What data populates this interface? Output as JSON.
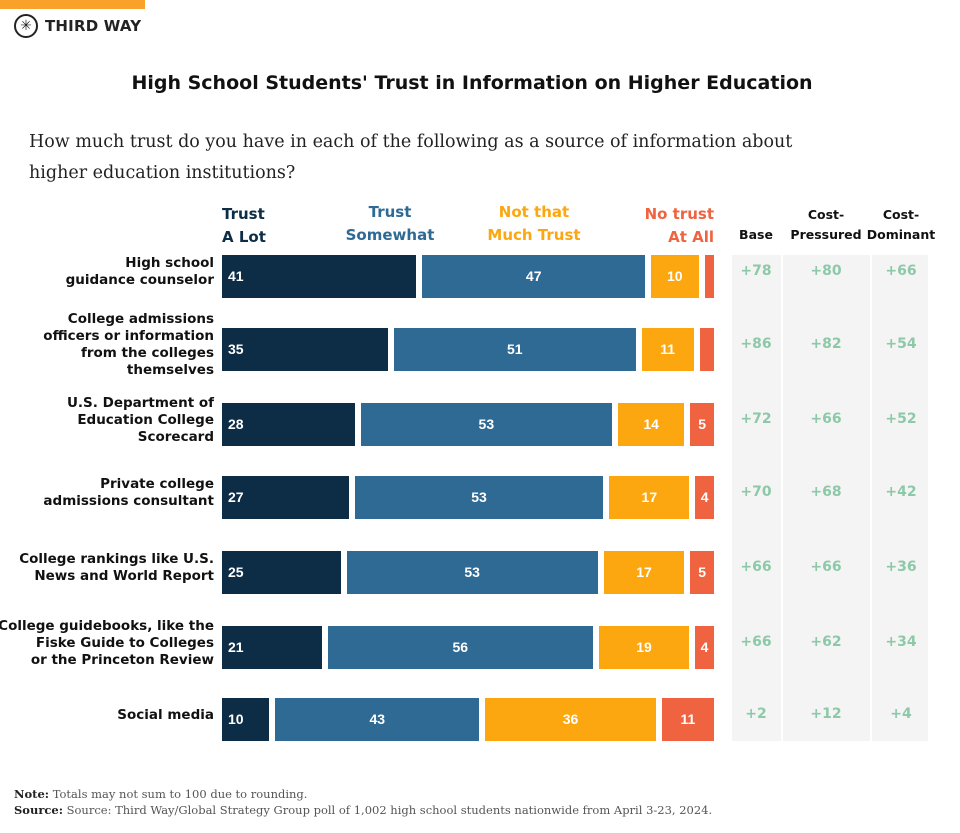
{
  "brand": {
    "name": "THIRD WAY",
    "accent": "#f9a12a"
  },
  "chart_data": {
    "type": "bar",
    "orientation": "horizontal",
    "stacked": true,
    "title": "High School Students' Trust in Information on Higher Education",
    "subtitle": "How much trust do you have in each of the following as a source of information about higher education institutions?",
    "categories": [
      "High school guidance counselor",
      "College admissions officers or information from the colleges themselves",
      "U.S. Department of Education College Scorecard",
      "Private college admissions consultant",
      "College rankings like U.S. News and World Report",
      "College guidebooks, like the Fiske Guide to Colleges or the Princeton Review",
      "Social media"
    ],
    "category_lines": [
      [
        "High school",
        "guidance counselor"
      ],
      [
        "College admissions",
        "officers or information",
        "from the colleges",
        "themselves"
      ],
      [
        "U.S. Department of",
        "Education College",
        "Scorecard"
      ],
      [
        "Private college",
        "admissions consultant"
      ],
      [
        "College rankings like U.S.",
        "News and World Report"
      ],
      [
        "College guidebooks, like the",
        "Fiske Guide to Colleges",
        "or the Princeton Review"
      ],
      [
        "Social media"
      ]
    ],
    "series": [
      {
        "name": "Trust A Lot",
        "header": [
          "Trust",
          "A Lot"
        ],
        "color": "#0d2d47",
        "values": [
          41,
          35,
          28,
          27,
          25,
          21,
          10
        ]
      },
      {
        "name": "Trust Somewhat",
        "header": [
          "Trust",
          "Somewhat"
        ],
        "color": "#2f6a95",
        "values": [
          47,
          51,
          53,
          53,
          53,
          56,
          43
        ]
      },
      {
        "name": "Not that Much Trust",
        "header": [
          "Not that",
          "Much Trust"
        ],
        "color": "#fca70f",
        "values": [
          10,
          11,
          14,
          17,
          17,
          19,
          36
        ]
      },
      {
        "name": "No trust At All",
        "header": [
          "No trust",
          "At All"
        ],
        "color": "#ef6340",
        "values": [
          2,
          3,
          5,
          4,
          5,
          4,
          11
        ]
      }
    ],
    "net_table": {
      "color": "#8dc9a8",
      "columns": [
        {
          "header": [
            "",
            "Base"
          ],
          "values": [
            "+78",
            "+86",
            "+72",
            "+70",
            "+66",
            "+66",
            "+2"
          ]
        },
        {
          "header": [
            "Cost-",
            "Pressured"
          ],
          "values": [
            "+80",
            "+82",
            "+66",
            "+68",
            "+66",
            "+62",
            "+12"
          ]
        },
        {
          "header": [
            "Cost-",
            "Dominant"
          ],
          "values": [
            "+66",
            "+54",
            "+52",
            "+42",
            "+36",
            "+34",
            "+4"
          ]
        }
      ]
    }
  },
  "notes": {
    "note_label": "Note:",
    "note_text": "Totals may not sum to 100 due to rounding.",
    "source_label": "Source:",
    "source_text": "Source: Third Way/Global Strategy Group poll of 1,002 high school students nationwide from April 3-23, 2024."
  }
}
